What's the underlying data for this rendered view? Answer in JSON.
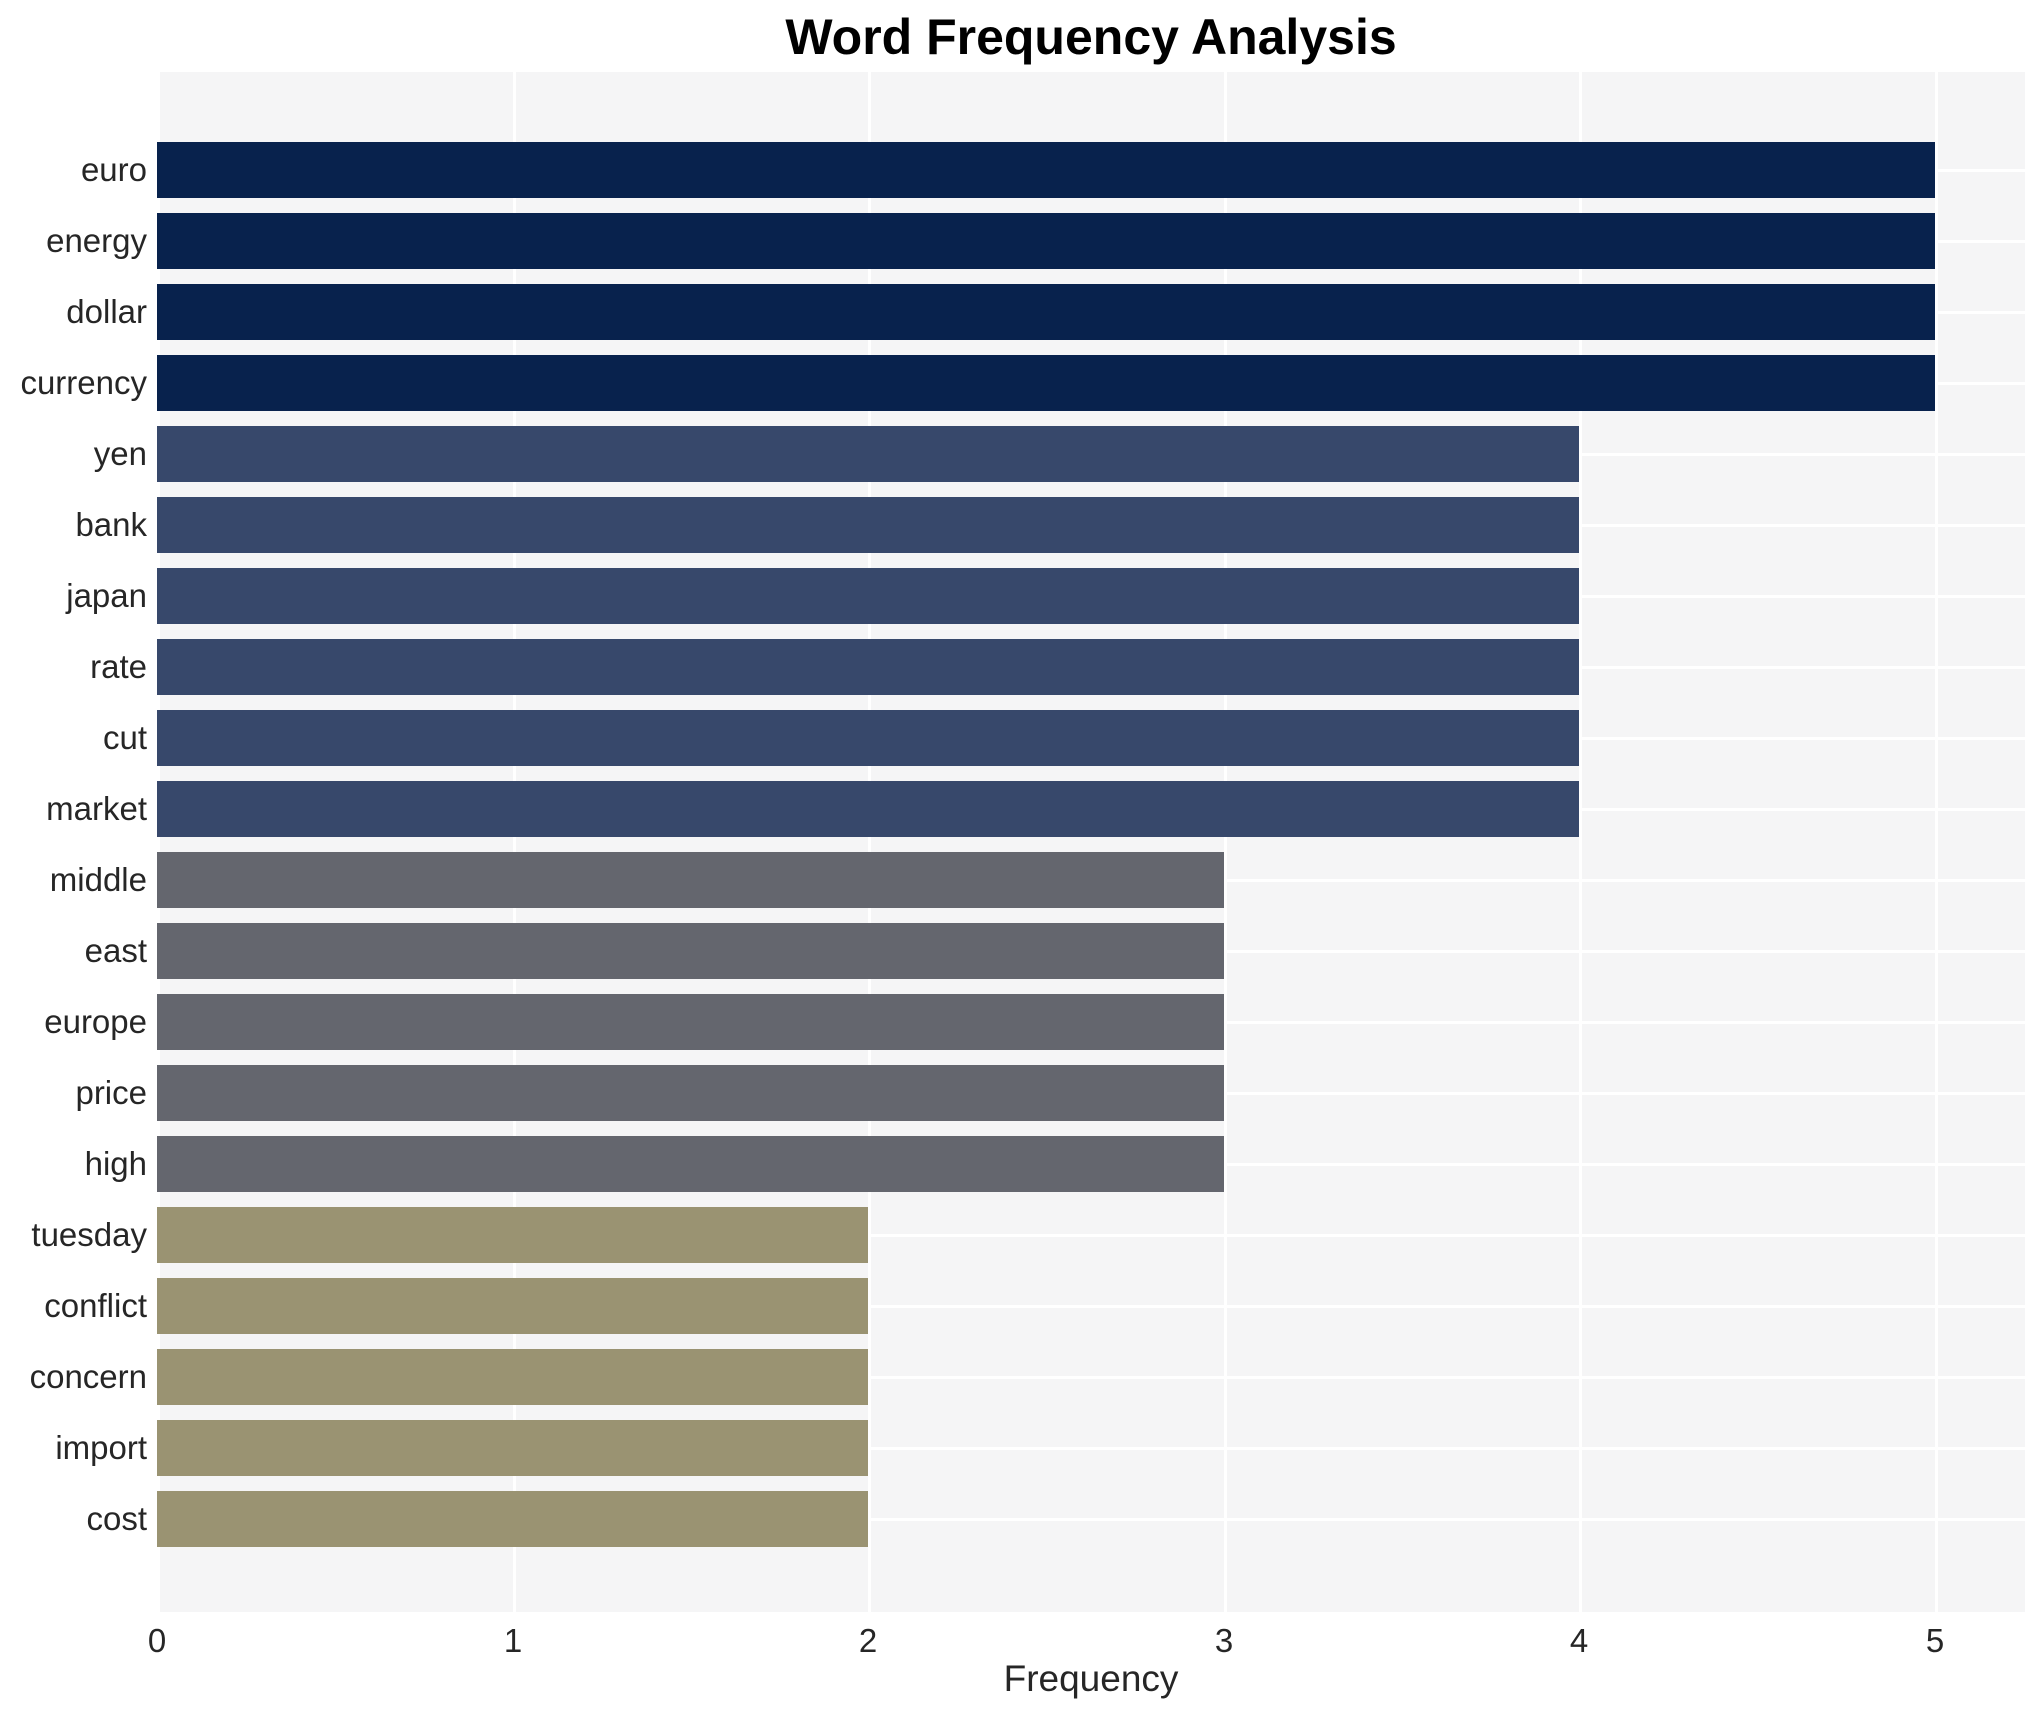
{
  "chart_data": {
    "type": "bar",
    "orientation": "horizontal",
    "title": "Word Frequency Analysis",
    "xlabel": "Frequency",
    "ylabel": "",
    "categories": [
      "euro",
      "energy",
      "dollar",
      "currency",
      "yen",
      "bank",
      "japan",
      "rate",
      "cut",
      "market",
      "middle",
      "east",
      "europe",
      "price",
      "high",
      "tuesday",
      "conflict",
      "concern",
      "import",
      "cost"
    ],
    "values": [
      5,
      5,
      5,
      5,
      4,
      4,
      4,
      4,
      4,
      4,
      3,
      3,
      3,
      3,
      3,
      2,
      2,
      2,
      2,
      2
    ],
    "xticks": [
      0,
      1,
      2,
      3,
      4,
      5
    ],
    "xlim": [
      0,
      5.25
    ],
    "grid": true,
    "legend": false,
    "colors": {
      "value_5": "#08224d",
      "value_4": "#37486b",
      "value_3": "#64666e",
      "value_2": "#9a9372",
      "plot_background": "#f5f5f6",
      "gridline": "#ffffff",
      "text": "#262626",
      "title_text": "#000000"
    }
  }
}
